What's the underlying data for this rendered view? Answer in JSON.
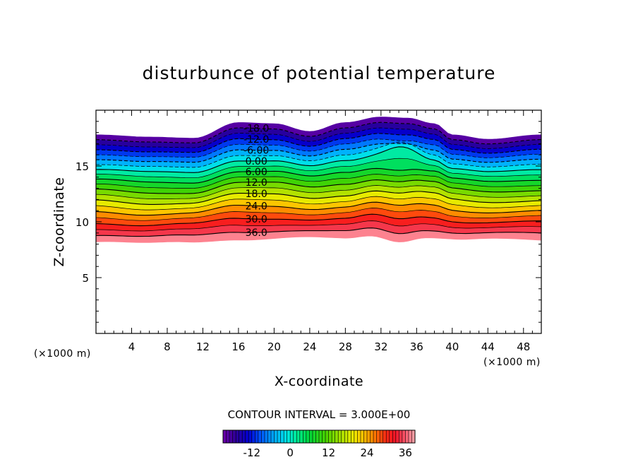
{
  "chart_data": {
    "type": "contour",
    "title": "disturbunce of potential temperature",
    "xlabel": "X-coordinate",
    "ylabel": "Z-coordinate",
    "x_unit": "(×1000 m)",
    "y_unit": "(×1000 m)",
    "xlim": [
      0,
      50
    ],
    "ylim": [
      0,
      20
    ],
    "x_ticks": [
      "4",
      "8",
      "12",
      "16",
      "20",
      "24",
      "28",
      "32",
      "36",
      "40",
      "44",
      "48"
    ],
    "y_ticks": [
      "5",
      "10",
      "15"
    ],
    "contour_interval_text": "CONTOUR INTERVAL = 3.000E+00",
    "contour_labels": [
      "-18.0",
      "-12.0",
      "-6.00",
      "0.00",
      "6.00",
      "12.0",
      "18.0",
      "24.0",
      "30.0",
      "36.0"
    ],
    "colorbar": {
      "min": -21,
      "max": 39,
      "step": 3,
      "tick_labels": [
        "-12",
        "0",
        "12",
        "24",
        "36"
      ]
    },
    "field": {
      "description_levels": "values decrease with height from 39 at bottom of layer (~8 km) to -21 at top (~19 km)",
      "layer_bottom_z": [
        [
          0,
          8.3
        ],
        [
          6,
          8.0
        ],
        [
          10,
          8.1
        ],
        [
          16,
          8.5
        ],
        [
          22,
          8.6
        ],
        [
          28,
          8.4
        ],
        [
          31,
          8.7
        ],
        [
          34,
          8.3
        ],
        [
          37,
          8.7
        ],
        [
          42,
          8.4
        ],
        [
          50,
          8.3
        ]
      ],
      "layer_top_z": [
        [
          0,
          17.8
        ],
        [
          6,
          17.6
        ],
        [
          11,
          17.5
        ],
        [
          16,
          18.9
        ],
        [
          20,
          18.8
        ],
        [
          24,
          18.1
        ],
        [
          28,
          18.9
        ],
        [
          32,
          19.4
        ],
        [
          35,
          19.3
        ],
        [
          38,
          18.8
        ],
        [
          40,
          17.8
        ],
        [
          44,
          17.4
        ],
        [
          50,
          17.8
        ]
      ]
    },
    "colors": {
      "cold": "#6600aa",
      "neutral": "#00eecc",
      "warm": "#ff2222",
      "warmest": "#ffaaaa"
    }
  }
}
